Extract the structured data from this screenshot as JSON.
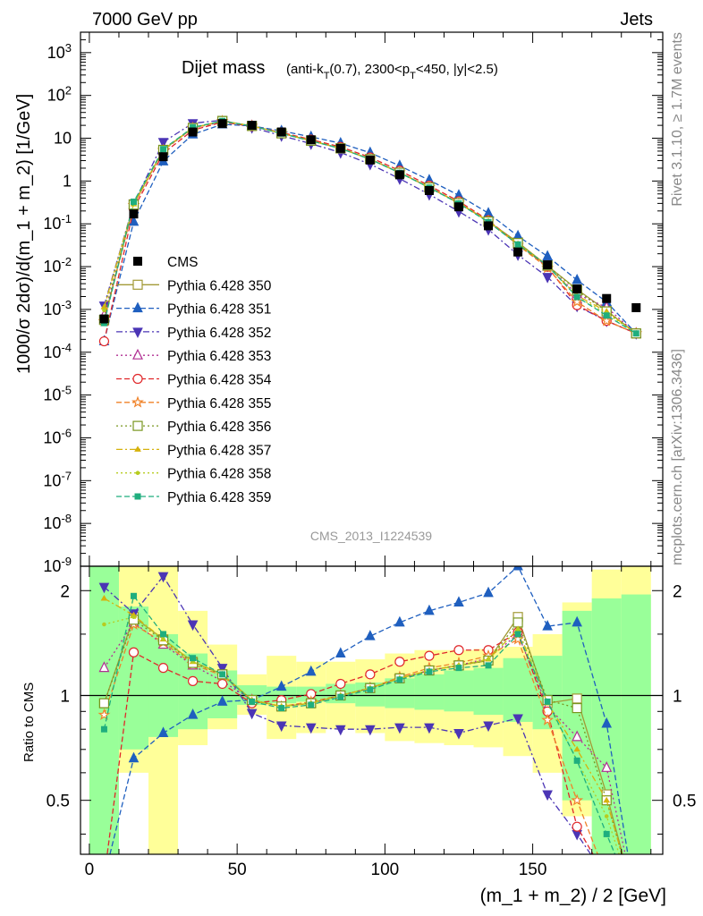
{
  "header": {
    "left": "7000 GeV pp",
    "right": "Jets",
    "rivet": "Rivet 3.1.10, ≥ 1.7M events",
    "mcplots": "mcplots.cern.ch [arXiv:1306.3436]"
  },
  "chart_data": {
    "type": "scatter",
    "title_main": "Dijet mass",
    "title_sub": "(anti-k_T(0.7), 2300<p_T<450, |y|<2.5)",
    "analysis_id": "CMS_2013_I1224539",
    "xlabel": "(m_1 + m_2) / 2 [GeV]",
    "ylabel": "1000/σ 2dσ)/d(m_1 + m_2) [1/GeV]",
    "ratio_ylabel": "Ratio to CMS",
    "xlim": [
      -3,
      194
    ],
    "ylim": [
      1e-09,
      3000
    ],
    "yscale": "log",
    "ratio_ylim": [
      0.35,
      2.35
    ],
    "ratio_yscale": "log",
    "x_ticks": [
      0,
      50,
      100,
      150
    ],
    "y_ticks": [
      "10^3",
      "10^2",
      "10",
      "1",
      "10^-1",
      "10^-2",
      "10^-3",
      "10^-4",
      "10^-5",
      "10^-6",
      "10^-7",
      "10^-8",
      "10^-9"
    ],
    "ratio_ticks": [
      "2",
      "1",
      "0.5"
    ],
    "x": [
      5,
      15,
      25,
      35,
      45,
      55,
      65,
      75,
      85,
      95,
      105,
      115,
      125,
      135,
      145,
      155,
      165,
      175,
      185
    ],
    "bin_edges": [
      0,
      10,
      20,
      30,
      40,
      50,
      60,
      70,
      80,
      90,
      100,
      110,
      120,
      130,
      140,
      150,
      160,
      170,
      180,
      190
    ],
    "data": {
      "name": "CMS",
      "values": [
        0.0006,
        0.17,
        3.7,
        14,
        22,
        20,
        14,
        9.2,
        5.8,
        3.1,
        1.4,
        0.6,
        0.25,
        0.09,
        0.022,
        0.011,
        0.003,
        0.0018,
        0.0011
      ],
      "band_inner": [
        [
          0.2,
          6
        ],
        [
          0.7,
          1.8
        ],
        [
          0.76,
          1.5
        ],
        [
          0.8,
          1.32
        ],
        [
          0.86,
          1.18
        ],
        [
          0.94,
          1.07
        ],
        [
          0.95,
          1.06
        ],
        [
          0.96,
          1.06
        ],
        [
          0.95,
          1.08
        ],
        [
          0.93,
          1.09
        ],
        [
          0.92,
          1.12
        ],
        [
          0.91,
          1.15
        ],
        [
          0.9,
          1.18
        ],
        [
          0.88,
          1.2
        ],
        [
          0.84,
          1.28
        ],
        [
          0.8,
          1.3
        ],
        [
          0.5,
          1.75
        ],
        [
          0.3,
          1.9
        ],
        [
          0.3,
          1.95
        ]
      ],
      "band_outer": [
        [
          0.2,
          6
        ],
        [
          0.6,
          2.5
        ],
        [
          0.3,
          2.6
        ],
        [
          0.72,
          1.75
        ],
        [
          0.8,
          1.4
        ],
        [
          0.88,
          1.15
        ],
        [
          0.75,
          1.3
        ],
        [
          0.78,
          1.25
        ],
        [
          0.8,
          1.25
        ],
        [
          0.78,
          1.27
        ],
        [
          0.74,
          1.32
        ],
        [
          0.73,
          1.35
        ],
        [
          0.72,
          1.35
        ],
        [
          0.71,
          1.36
        ],
        [
          0.67,
          1.38
        ],
        [
          0.6,
          1.5
        ],
        [
          0.45,
          1.85
        ],
        [
          0.3,
          2.3
        ],
        [
          0.3,
          3
        ]
      ]
    },
    "series": [
      {
        "name": "Pythia 6.428 350",
        "color": "#a29a36",
        "marker": "square-open",
        "dash": "solid",
        "ratio": [
          0.95,
          1.68,
          1.45,
          1.25,
          1.15,
          0.97,
          0.93,
          0.95,
          1.0,
          1.05,
          1.12,
          1.18,
          1.22,
          1.26,
          1.68,
          0.95,
          0.98,
          0.52,
          0.25
        ]
      },
      {
        "name": "Pythia 6.428 351",
        "color": "#1f5fbf",
        "marker": "triangle-up",
        "dash": "dash",
        "ratio": [
          0.3,
          0.66,
          0.78,
          0.88,
          0.96,
          0.97,
          1.06,
          1.17,
          1.32,
          1.48,
          1.62,
          1.75,
          1.85,
          1.97,
          2.35,
          1.58,
          1.62,
          0.83,
          0.25
        ]
      },
      {
        "name": "Pythia 6.428 352",
        "color": "#4b35b5",
        "marker": "triangle-down",
        "dash": "dashdot",
        "ratio": [
          2.05,
          1.72,
          2.2,
          1.6,
          1.2,
          0.89,
          0.82,
          0.81,
          0.8,
          0.8,
          0.81,
          0.81,
          0.78,
          0.82,
          0.86,
          0.52,
          0.4,
          0.3,
          0.25
        ]
      },
      {
        "name": "Pythia 6.428 353",
        "color": "#b02f92",
        "marker": "triangle-up-open",
        "dash": "dot",
        "ratio": [
          1.2,
          1.62,
          1.4,
          1.22,
          1.1,
          0.97,
          0.93,
          0.95,
          1.0,
          1.05,
          1.12,
          1.18,
          1.22,
          1.28,
          1.5,
          0.93,
          0.76,
          0.62,
          0.25
        ]
      },
      {
        "name": "Pythia 6.428 354",
        "color": "#e0272a",
        "marker": "circle-open",
        "dash": "dash",
        "ratio": [
          0.3,
          1.33,
          1.2,
          1.1,
          1.08,
          0.95,
          0.97,
          1.01,
          1.08,
          1.15,
          1.25,
          1.3,
          1.35,
          1.35,
          1.52,
          0.9,
          0.42,
          0.3,
          0.25
        ]
      },
      {
        "name": "Pythia 6.428 355",
        "color": "#f08229",
        "marker": "star-open",
        "dash": "dash",
        "ratio": [
          0.88,
          1.6,
          1.42,
          1.23,
          1.14,
          0.97,
          0.93,
          0.96,
          1.0,
          1.05,
          1.13,
          1.2,
          1.24,
          1.3,
          1.45,
          0.85,
          0.5,
          0.3,
          0.25
        ]
      },
      {
        "name": "Pythia 6.428 356",
        "color": "#78961e",
        "marker": "square-open",
        "dash": "dot",
        "ratio": [
          0.95,
          1.65,
          1.44,
          1.24,
          1.15,
          0.97,
          0.93,
          0.95,
          1.0,
          1.05,
          1.12,
          1.18,
          1.22,
          1.26,
          1.62,
          0.97,
          0.92,
          0.5,
          0.25
        ]
      },
      {
        "name": "Pythia 6.428 357",
        "color": "#d6b20d",
        "marker": "tri-small",
        "dash": "dashdot",
        "ratio": [
          1.9,
          1.7,
          1.45,
          1.25,
          1.15,
          0.97,
          0.93,
          0.95,
          1.0,
          1.05,
          1.12,
          1.18,
          1.22,
          1.27,
          1.55,
          0.95,
          0.7,
          0.5,
          0.25
        ]
      },
      {
        "name": "Pythia 6.428 358",
        "color": "#b7cc21",
        "marker": "dot-small",
        "dash": "dot",
        "ratio": [
          1.6,
          1.68,
          1.45,
          1.25,
          1.15,
          0.97,
          0.93,
          0.95,
          1.0,
          1.05,
          1.12,
          1.18,
          1.22,
          1.27,
          1.55,
          0.95,
          0.65,
          0.45,
          0.25
        ]
      },
      {
        "name": "Pythia 6.428 359",
        "color": "#1fae7e",
        "marker": "square-filled",
        "dash": "dash",
        "ratio": [
          0.8,
          1.93,
          1.5,
          1.28,
          1.15,
          0.96,
          0.92,
          0.94,
          0.99,
          1.04,
          1.11,
          1.17,
          1.2,
          1.22,
          1.5,
          0.96,
          0.65,
          0.4,
          0.25
        ]
      }
    ]
  }
}
